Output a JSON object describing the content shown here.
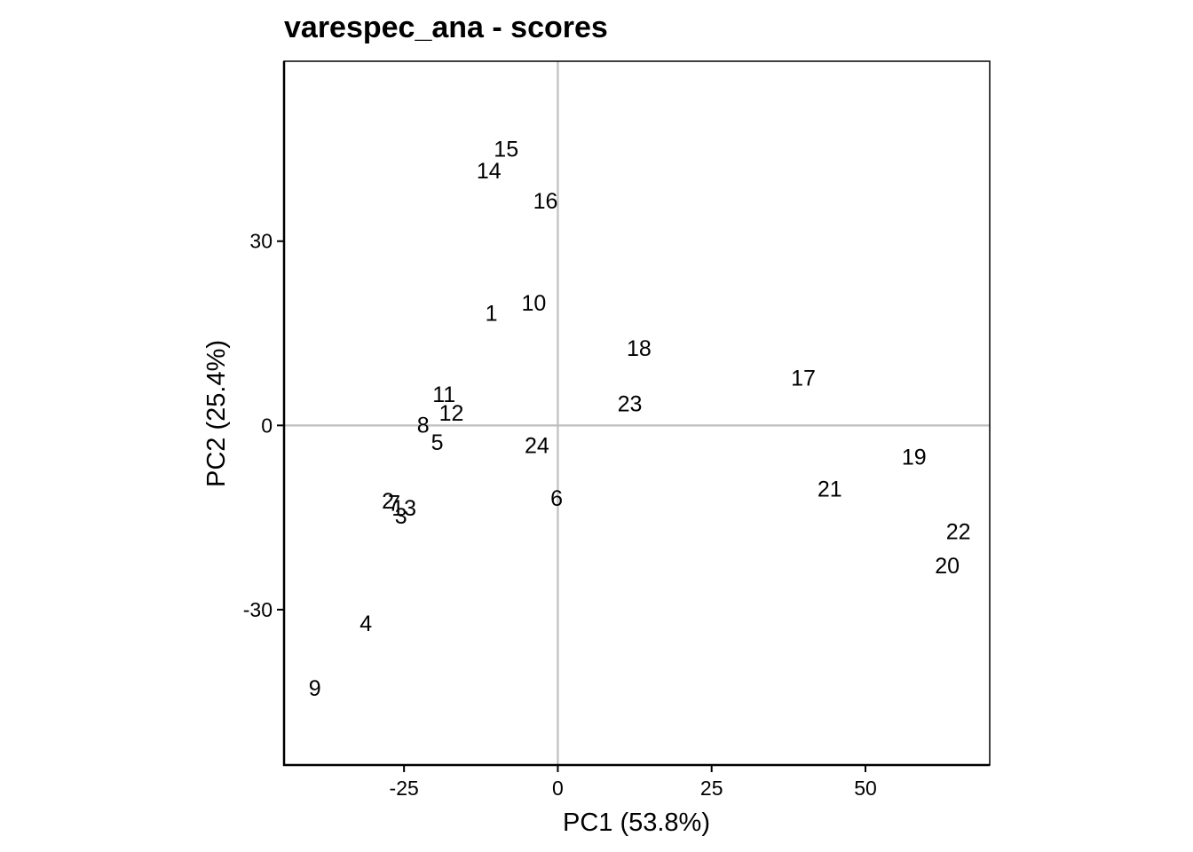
{
  "chart_data": {
    "type": "scatter",
    "title": "varespec_ana - scores",
    "xlabel": "PC1 (53.8%)",
    "ylabel": "PC2 (25.4%)",
    "xlim": [
      -44.5,
      70.2
    ],
    "ylim": [
      -55.3,
      59.3
    ],
    "x_ticks": [
      -25,
      0,
      25,
      50
    ],
    "x_tick_labels": [
      "-25",
      "0",
      "25",
      "50"
    ],
    "y_ticks": [
      30,
      0,
      -30
    ],
    "y_tick_labels": [
      "30",
      "0",
      "-30"
    ],
    "reference_lines": {
      "x": 0,
      "y": 0,
      "color": "#bebebe"
    },
    "grid": false,
    "points": [
      {
        "label": "1",
        "x": -10.8,
        "y": 18.3
      },
      {
        "label": "2",
        "x": -27.6,
        "y": -12.2
      },
      {
        "label": "3",
        "x": -25.5,
        "y": -14.7
      },
      {
        "label": "4",
        "x": -31.2,
        "y": -32.2
      },
      {
        "label": "5",
        "x": -19.6,
        "y": -2.7
      },
      {
        "label": "6",
        "x": -0.2,
        "y": -11.8
      },
      {
        "label": "7",
        "x": -26.6,
        "y": -12.6
      },
      {
        "label": "8",
        "x": -21.9,
        "y": 0.1
      },
      {
        "label": "9",
        "x": -39.5,
        "y": -42.7
      },
      {
        "label": "10",
        "x": -3.9,
        "y": 20.0
      },
      {
        "label": "11",
        "x": -18.5,
        "y": 5.1
      },
      {
        "label": "12",
        "x": -17.3,
        "y": 2.1
      },
      {
        "label": "13",
        "x": -25.0,
        "y": -13.4
      },
      {
        "label": "14",
        "x": -11.2,
        "y": 41.5
      },
      {
        "label": "15",
        "x": -8.4,
        "y": 45.1
      },
      {
        "label": "16",
        "x": -2.0,
        "y": 36.6
      },
      {
        "label": "17",
        "x": 39.9,
        "y": 7.8
      },
      {
        "label": "18",
        "x": 13.2,
        "y": 12.6
      },
      {
        "label": "19",
        "x": 57.9,
        "y": -5.1
      },
      {
        "label": "20",
        "x": 63.3,
        "y": -22.8
      },
      {
        "label": "21",
        "x": 44.2,
        "y": -10.3
      },
      {
        "label": "22",
        "x": 65.1,
        "y": -17.2
      },
      {
        "label": "23",
        "x": 11.7,
        "y": 3.6
      },
      {
        "label": "24",
        "x": -3.4,
        "y": -3.2
      }
    ],
    "colors": {
      "points": "#000000",
      "axes": "#000000",
      "reference": "#bebebe"
    }
  }
}
